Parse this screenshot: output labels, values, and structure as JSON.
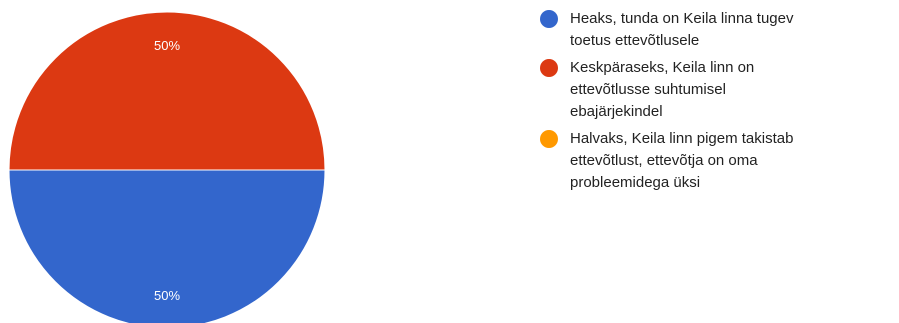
{
  "chart_data": {
    "type": "pie",
    "categories": [
      "Heaks, tunda on Keila linna tugev toetus ettevõtlusele",
      "Keskpäraseks, Keila linn on ettevõtlusse suhtumisel ebajärjekindel",
      "Halvaks, Keila linn pigem takistab ettevõtlust, ettevõtja on oma probleemidega üksi"
    ],
    "values": [
      50,
      50,
      0
    ],
    "data_labels": [
      "50%",
      "50%",
      ""
    ],
    "colors": [
      "#3366cc",
      "#dc3912",
      "#ff9900"
    ],
    "legend_position": "right",
    "start": "right-horizontal"
  },
  "legend": {
    "items": [
      {
        "label_lines": [
          "Heaks, tunda on Keila linna tugev",
          "toetus ettevõtlusele"
        ],
        "color": "#3366cc"
      },
      {
        "label_lines": [
          "Keskpäraseks, Keila linn on",
          "ettevõtlusse suhtumisel",
          "ebajärjekindel"
        ],
        "color": "#dc3912"
      },
      {
        "label_lines": [
          "Halvaks, Keila linn pigem takistab",
          "ettevõtlust, ettevõtja on oma",
          "probleemidega üksi"
        ],
        "color": "#ff9900"
      }
    ]
  }
}
